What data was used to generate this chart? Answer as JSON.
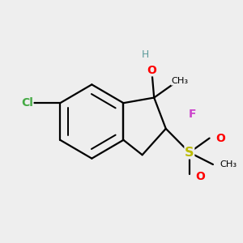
{
  "bg_color": "#eeeeee",
  "bond_color": "#000000",
  "bond_lw": 1.6,
  "label_colors": {
    "OH": "#ff0000",
    "H": "#5a9a9a",
    "F": "#cc44cc",
    "S": "#bbbb00",
    "O": "#ff0000",
    "Cl": "#44aa44",
    "C": "#000000",
    "Me": "#000000"
  },
  "font_size": 10.0
}
